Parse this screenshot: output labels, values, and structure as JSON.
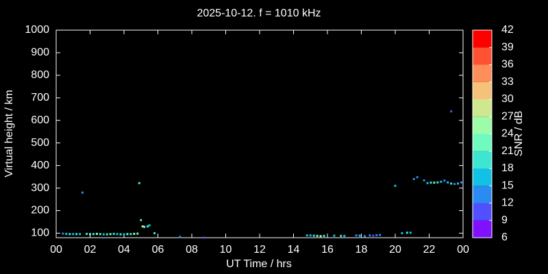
{
  "chart_data": {
    "type": "scatter",
    "title": "2025-10-12. f = 1010 kHz",
    "x_label": "UT Time / hrs",
    "y_label": "Virtual height / km",
    "xlim": [
      0,
      24
    ],
    "xticks": [
      {
        "value": 0,
        "label": "00"
      },
      {
        "value": 2,
        "label": "02"
      },
      {
        "value": 4,
        "label": "04"
      },
      {
        "value": 6,
        "label": "06"
      },
      {
        "value": 8,
        "label": "08"
      },
      10,
      12,
      14,
      16,
      18,
      20,
      22,
      {
        "value": 24,
        "label": "00"
      }
    ],
    "ylim": [
      80,
      1000
    ],
    "yticks": [
      100,
      200,
      300,
      400,
      500,
      600,
      700,
      800,
      900,
      1000
    ],
    "colorbar": {
      "label": "SNR / dB",
      "ticks": [
        6,
        9,
        12,
        15,
        18,
        21,
        24,
        27,
        30,
        33,
        36,
        39,
        42
      ],
      "colors": [
        "#8010ff",
        "#5050ff",
        "#2a8cf2",
        "#12c2e6",
        "#3ee6d2",
        "#6ffac0",
        "#9cfca8",
        "#cfe890",
        "#f6c27a",
        "#ff8e5a",
        "#ff5232",
        "#ff0000"
      ]
    },
    "points": {
      "x": [
        0.4,
        0.6,
        0.8,
        1.0,
        1.2,
        1.4,
        1.8,
        2.0,
        2.2,
        2.4,
        2.6,
        2.8,
        3.0,
        3.2,
        3.4,
        3.6,
        3.8,
        4.0,
        4.2,
        4.4,
        4.6,
        4.8,
        1.55,
        4.9,
        5.0,
        5.1,
        5.2,
        5.4,
        5.5,
        5.8,
        7.3,
        8.7,
        14.8,
        15.0,
        15.2,
        15.4,
        15.6,
        15.8,
        16.4,
        16.8,
        17.0,
        17.7,
        17.9,
        18.2,
        18.5,
        18.7,
        18.9,
        19.1,
        20.0,
        20.4,
        20.7,
        20.9,
        21.1,
        21.3,
        21.7,
        21.9,
        22.1,
        22.3,
        22.5,
        22.7,
        22.9,
        23.1,
        23.3,
        23.5,
        23.7,
        23.9,
        23.3
      ],
      "y": [
        98,
        97,
        96,
        96,
        96,
        96,
        97,
        96,
        96,
        97,
        96,
        95,
        95,
        96,
        97,
        96,
        95,
        95,
        96,
        96,
        97,
        98,
        280,
        322,
        158,
        130,
        128,
        130,
        135,
        100,
        84,
        80,
        90,
        90,
        89,
        88,
        87,
        88,
        89,
        88,
        88,
        90,
        89,
        87,
        90,
        89,
        91,
        92,
        310,
        100,
        102,
        102,
        340,
        348,
        334,
        322,
        324,
        324,
        325,
        328,
        333,
        325,
        320,
        318,
        320,
        325,
        640
      ],
      "snr": [
        12,
        15,
        18,
        15,
        18,
        15,
        18,
        21,
        18,
        24,
        18,
        15,
        18,
        21,
        18,
        15,
        18,
        15,
        21,
        18,
        24,
        21,
        12,
        18,
        18,
        27,
        21,
        18,
        15,
        18,
        12,
        9,
        15,
        15,
        18,
        21,
        24,
        18,
        15,
        18,
        15,
        12,
        15,
        12,
        12,
        9,
        12,
        12,
        15,
        15,
        18,
        15,
        12,
        12,
        12,
        15,
        18,
        21,
        18,
        15,
        12,
        15,
        18,
        12,
        15,
        12,
        9
      ]
    }
  }
}
